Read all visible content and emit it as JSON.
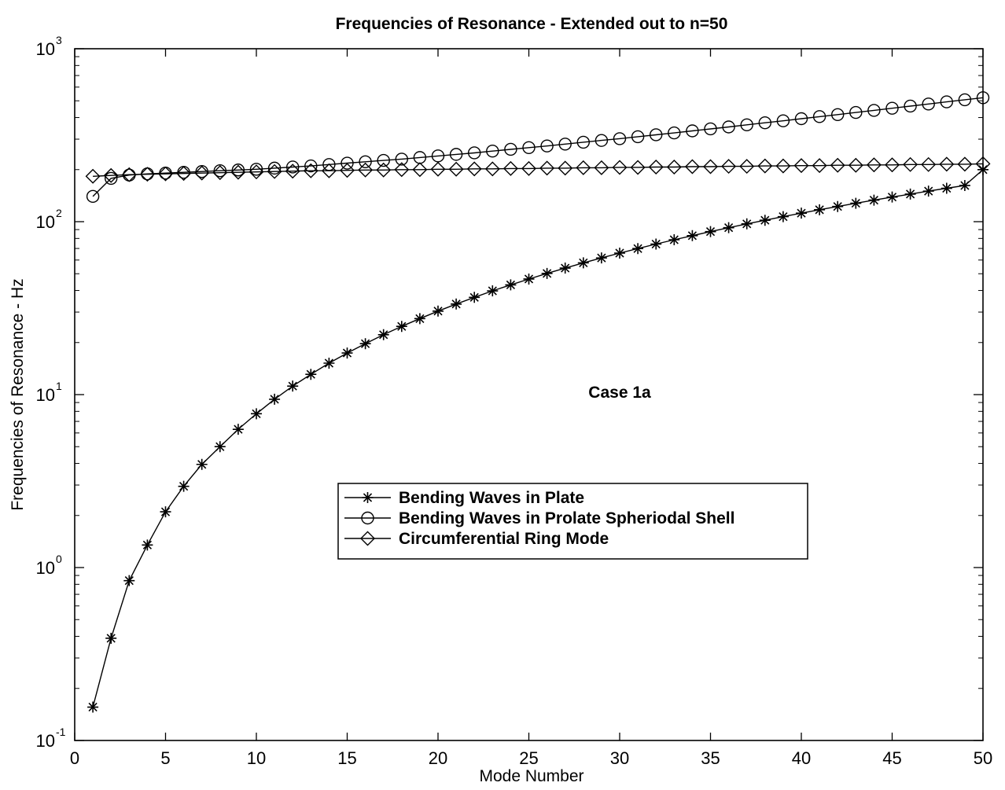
{
  "chart_data": {
    "type": "line",
    "title": "Frequencies of Resonance - Extended out to n=50",
    "xlabel": "Mode Number",
    "ylabel": "Frequencies of Resonance - Hz",
    "xlim": [
      0,
      50
    ],
    "ylim": [
      0.1,
      1000
    ],
    "yscale": "log",
    "grid": false,
    "legend_position": "center",
    "x_ticks": [
      0,
      5,
      10,
      15,
      20,
      25,
      30,
      35,
      40,
      45,
      50
    ],
    "y_ticks": [
      {
        "base": "10",
        "exp": "-1",
        "value": 0.1
      },
      {
        "base": "10",
        "exp": "0",
        "value": 1
      },
      {
        "base": "10",
        "exp": "1",
        "value": 10
      },
      {
        "base": "10",
        "exp": "2",
        "value": 100
      },
      {
        "base": "10",
        "exp": "3",
        "value": 1000
      }
    ],
    "annotations": [
      {
        "text": "Case 1a",
        "x": 30,
        "y": 10.3
      }
    ],
    "x": [
      1,
      2,
      3,
      4,
      5,
      6,
      7,
      8,
      9,
      10,
      11,
      12,
      13,
      14,
      15,
      16,
      17,
      18,
      19,
      20,
      21,
      22,
      23,
      24,
      25,
      26,
      27,
      28,
      29,
      30,
      31,
      32,
      33,
      34,
      35,
      36,
      37,
      38,
      39,
      40,
      41,
      42,
      43,
      44,
      45,
      46,
      47,
      48,
      49,
      50
    ],
    "series": [
      {
        "name": "Bending Waves in Plate",
        "marker": "asterisk",
        "values": [
          0.156,
          0.39,
          0.84,
          1.35,
          2.1,
          2.95,
          3.95,
          5.0,
          6.3,
          7.75,
          9.4,
          11.2,
          13.1,
          15.2,
          17.4,
          19.7,
          22.2,
          24.8,
          27.5,
          30.4,
          33.4,
          36.5,
          39.8,
          43.1,
          46.6,
          50.2,
          53.9,
          57.8,
          61.7,
          65.8,
          69.9,
          74.2,
          78.6,
          83.0,
          87.6,
          92.3,
          97.1,
          101.9,
          106.9,
          112.0,
          117.2,
          122.4,
          127.8,
          133.2,
          138.8,
          144.4,
          150.2,
          156.0,
          161.9,
          200.0
        ]
      },
      {
        "name": "Bending Waves in Prolate Spheriodal Shell",
        "marker": "circle",
        "values": [
          140,
          178,
          186,
          189,
          191,
          193,
          195,
          197,
          199,
          201,
          204,
          207,
          210,
          214,
          218,
          222,
          226,
          230,
          235,
          240,
          245,
          250,
          256,
          262,
          268,
          274,
          281,
          288,
          295,
          302,
          310,
          318,
          326,
          335,
          344,
          353,
          363,
          373,
          383,
          394,
          405,
          416,
          428,
          440,
          453,
          466,
          479,
          493,
          507,
          521
        ]
      },
      {
        "name": "Circumferential Ring Mode",
        "marker": "diamond",
        "values": [
          183,
          185,
          187,
          188,
          189,
          190,
          191,
          192,
          193,
          194,
          195,
          196,
          197,
          197,
          198,
          199,
          199,
          200,
          200,
          201,
          201,
          202,
          202,
          203,
          203,
          204,
          204,
          205,
          205,
          206,
          206,
          207,
          207,
          208,
          208,
          209,
          209,
          210,
          210,
          211,
          211,
          212,
          212,
          213,
          213,
          214,
          214,
          215,
          215,
          216
        ]
      }
    ]
  }
}
